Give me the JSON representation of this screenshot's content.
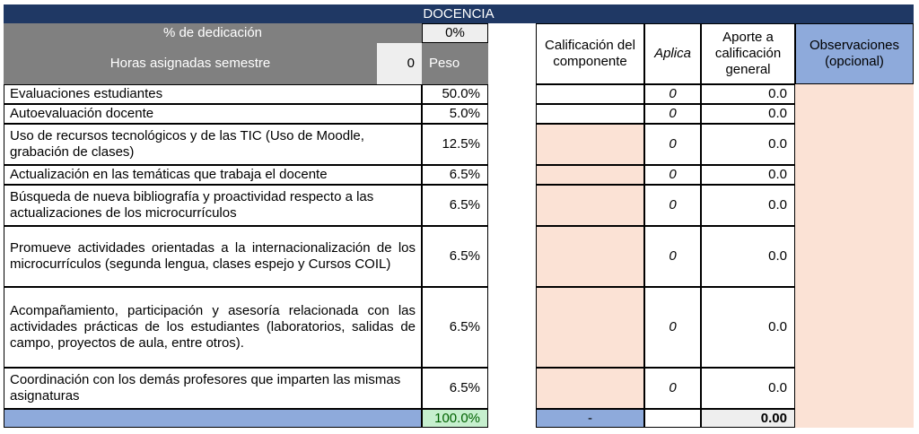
{
  "title": "DOCENCIA",
  "header": {
    "dedicacion_label": "% de dedicación",
    "dedicacion_value": "0%",
    "horas_label": "Horas asignadas semestre",
    "horas_value": "0",
    "peso_label": "Peso",
    "calificacion_label": "Calificación del componente",
    "aplica_label": "Aplica",
    "aporte_label": "Aporte a calificación general",
    "observaciones_label": "Observaciones (opcional)"
  },
  "rows": [
    {
      "label": "Evaluaciones estudiantes",
      "peso": "50.0%",
      "aplica": "0",
      "aporte": "0.0"
    },
    {
      "label": "Autoevaluación docente",
      "peso": "5.0%",
      "aplica": "0",
      "aporte": "0.0"
    },
    {
      "label": "Uso de recursos tecnológicos y de las TIC (Uso de Moodle, grabación de clases)",
      "peso": "12.5%",
      "aplica": "0",
      "aporte": "0.0"
    },
    {
      "label": "Actualización en las temáticas que trabaja el docente",
      "peso": "6.5%",
      "aplica": "0",
      "aporte": "0.0"
    },
    {
      "label": "Búsqueda de nueva bibliografía y proactividad respecto a las actualizaciones de los microcurrículos",
      "peso": "6.5%",
      "aplica": "0",
      "aporte": "0.0"
    },
    {
      "label": "Promueve actividades orientadas a la internacionalización de los microcurrículos (segunda lengua, clases espejo y Cursos COIL)",
      "peso": "6.5%",
      "aplica": "0",
      "aporte": "0.0"
    },
    {
      "label": "Acompañamiento, participación y asesoría relacionada con las actividades prácticas de los estudiantes (laboratorios, salidas de campo, proyectos de aula, entre otros).",
      "peso": "6.5%",
      "aplica": "0",
      "aporte": "0.0"
    },
    {
      "label": "Coordinación con los demás profesores que imparten las mismas asignaturas",
      "peso": "6.5%",
      "aplica": "0",
      "aporte": "0.0"
    }
  ],
  "totals": {
    "peso_total": "100.0%",
    "calificacion_total": "-",
    "aporte_total": "0.00"
  },
  "colors": {
    "title_bg": "#1f3864",
    "header_gray": "#808080",
    "input_pink": "#fbe2d5",
    "total_blue": "#8eaadb",
    "total_green": "#c6efce"
  }
}
